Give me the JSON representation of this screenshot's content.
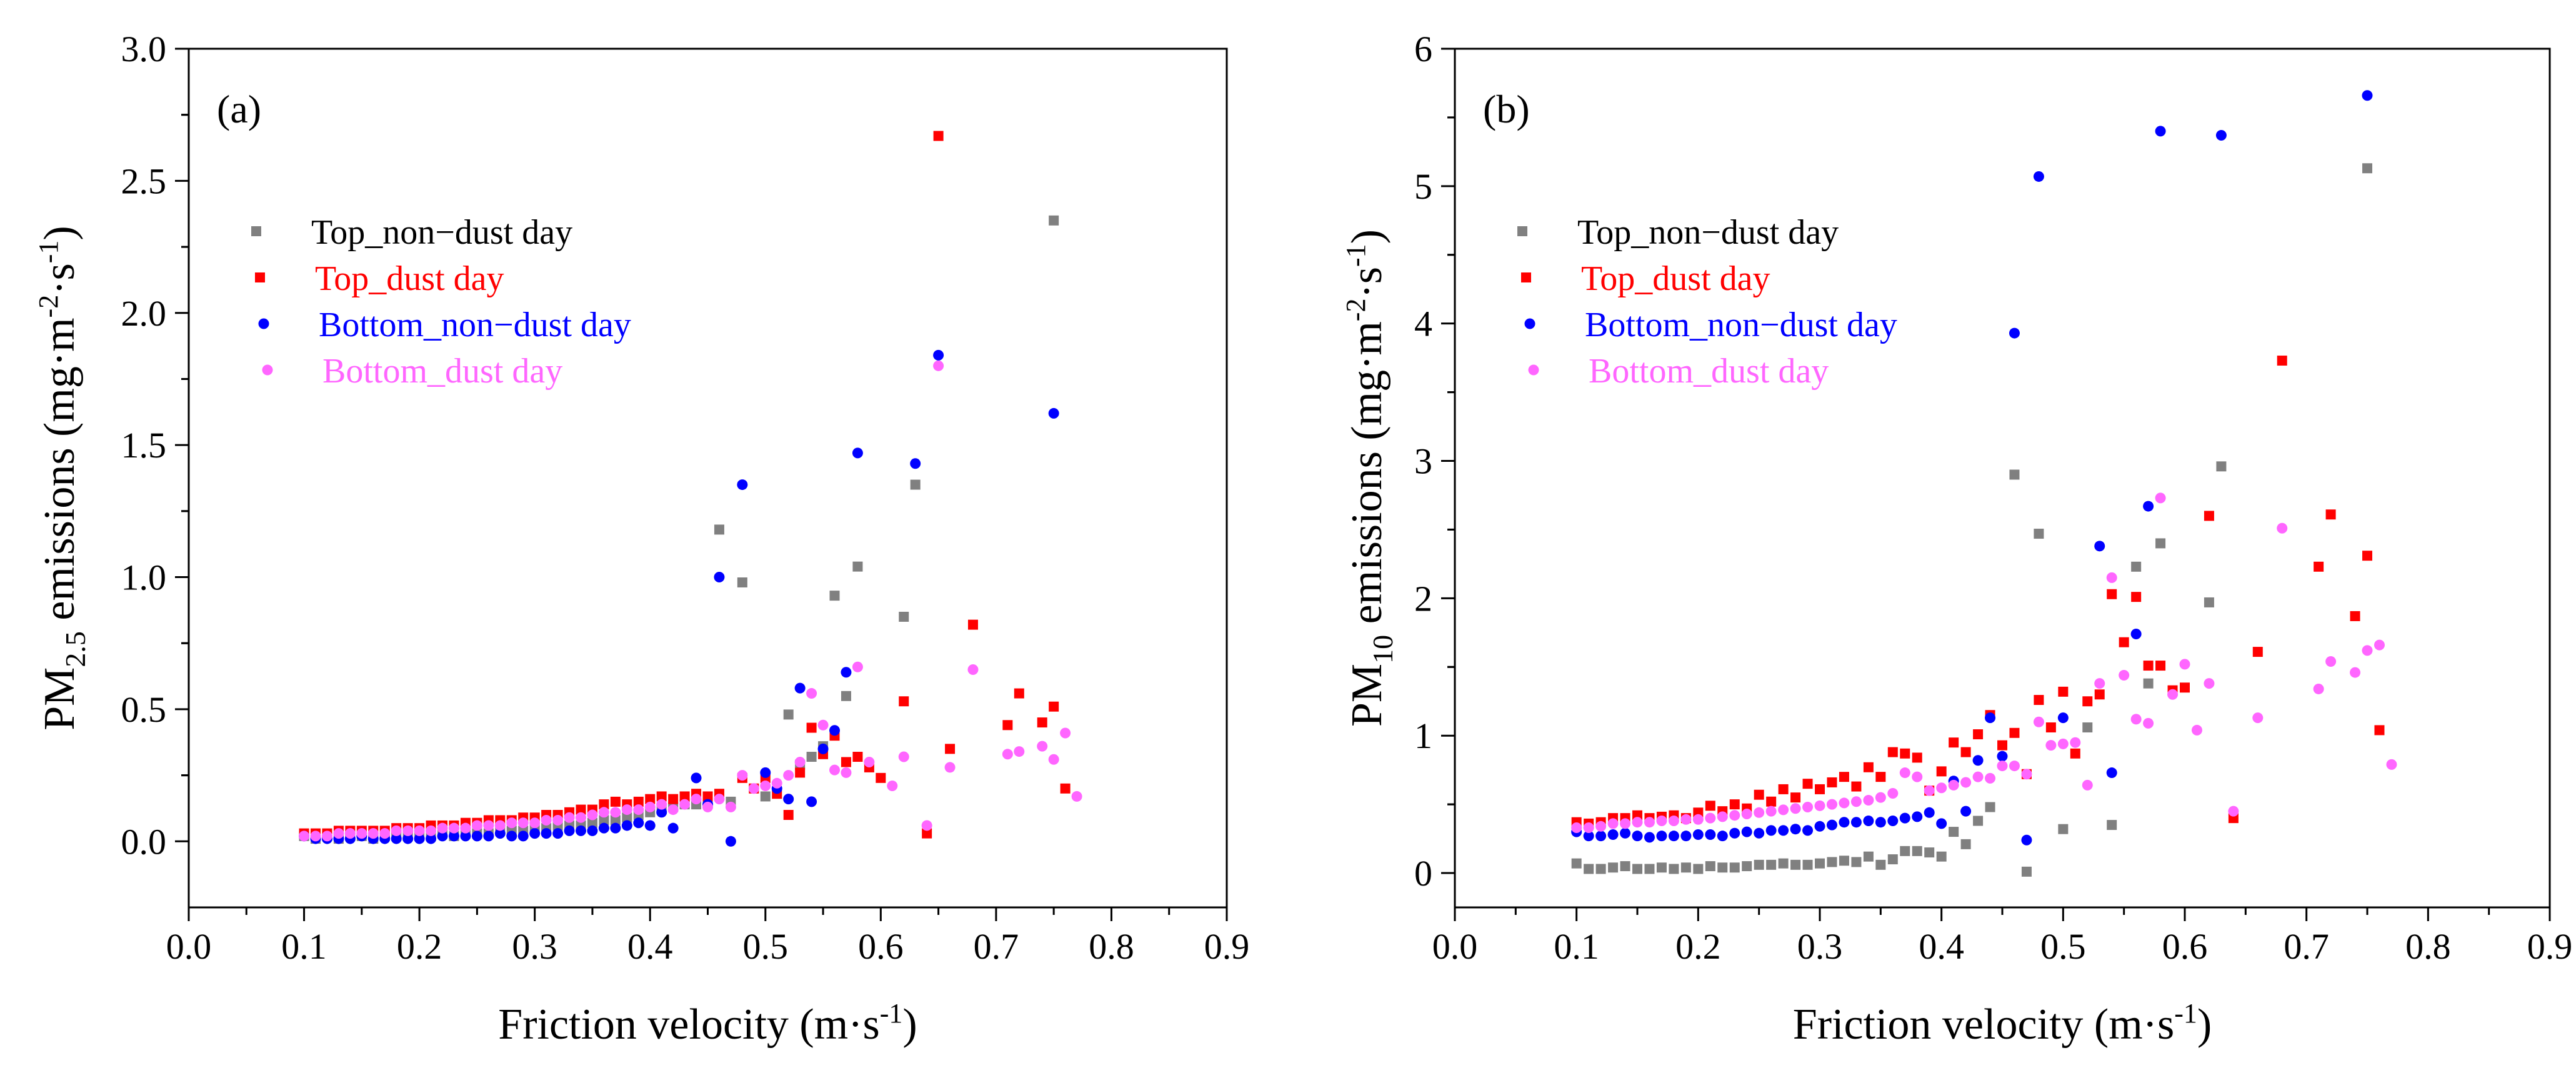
{
  "chart_data": [
    {
      "type": "scatter",
      "panel_label": "(a)",
      "ylabel": {
        "main": "PM",
        "sub": "2.5",
        "rest": " emissions (mg·m",
        "sup1": "-2",
        "mid": "·s",
        "sup2": "-1",
        "end": ")"
      },
      "xlabel": {
        "main": "Friction velocity (m·s",
        "sup": "-1",
        "end": ")"
      },
      "xlim": [
        0.0,
        0.9
      ],
      "ylim": [
        -0.25,
        3.0
      ],
      "xticks": [
        "0.0",
        "0.1",
        "0.2",
        "0.3",
        "0.4",
        "0.5",
        "0.6",
        "0.7",
        "0.8",
        "0.9"
      ],
      "yticks": [
        "0.0",
        "0.5",
        "1.0",
        "1.5",
        "2.0",
        "2.5",
        "3.0"
      ],
      "legend_position": "upper-left",
      "series": [
        {
          "name": "Top_non−dust day",
          "color": "#808080",
          "marker": "square",
          "x": [
            0.1,
            0.11,
            0.12,
            0.13,
            0.14,
            0.15,
            0.16,
            0.17,
            0.18,
            0.19,
            0.2,
            0.21,
            0.22,
            0.23,
            0.24,
            0.25,
            0.26,
            0.27,
            0.28,
            0.29,
            0.3,
            0.31,
            0.32,
            0.33,
            0.34,
            0.35,
            0.36,
            0.37,
            0.38,
            0.39,
            0.4,
            0.41,
            0.42,
            0.43,
            0.44,
            0.45,
            0.46,
            0.47,
            0.48,
            0.5,
            0.52,
            0.53,
            0.54,
            0.55,
            0.56,
            0.57,
            0.58,
            0.62,
            0.63,
            0.75
          ],
          "y": [
            0.02,
            0.01,
            0.02,
            0.01,
            0.02,
            0.02,
            0.01,
            0.02,
            0.02,
            0.02,
            0.02,
            0.02,
            0.03,
            0.02,
            0.03,
            0.03,
            0.03,
            0.04,
            0.04,
            0.04,
            0.05,
            0.05,
            0.06,
            0.06,
            0.06,
            0.07,
            0.08,
            0.08,
            0.09,
            0.1,
            0.11,
            0.12,
            0.13,
            0.14,
            0.14,
            0.16,
            1.18,
            0.15,
            0.98,
            0.17,
            0.48,
            0.29,
            0.32,
            0.36,
            0.93,
            0.55,
            1.04,
            0.85,
            1.35,
            2.35
          ]
        },
        {
          "name": "Top_dust day",
          "color": "#ff0000",
          "marker": "square",
          "x": [
            0.1,
            0.11,
            0.12,
            0.13,
            0.14,
            0.15,
            0.16,
            0.17,
            0.18,
            0.19,
            0.2,
            0.21,
            0.22,
            0.23,
            0.24,
            0.25,
            0.26,
            0.27,
            0.28,
            0.29,
            0.3,
            0.31,
            0.32,
            0.33,
            0.34,
            0.35,
            0.36,
            0.37,
            0.38,
            0.39,
            0.4,
            0.41,
            0.42,
            0.43,
            0.44,
            0.45,
            0.46,
            0.48,
            0.49,
            0.5,
            0.51,
            0.52,
            0.53,
            0.54,
            0.55,
            0.56,
            0.57,
            0.58,
            0.59,
            0.6,
            0.62,
            0.64,
            0.65,
            0.66,
            0.68,
            0.71,
            0.72,
            0.74,
            0.75,
            0.76
          ],
          "y": [
            0.03,
            0.03,
            0.03,
            0.04,
            0.04,
            0.04,
            0.04,
            0.04,
            0.05,
            0.05,
            0.05,
            0.06,
            0.06,
            0.06,
            0.07,
            0.07,
            0.08,
            0.08,
            0.08,
            0.09,
            0.09,
            0.1,
            0.1,
            0.11,
            0.12,
            0.12,
            0.14,
            0.15,
            0.14,
            0.15,
            0.16,
            0.17,
            0.16,
            0.17,
            0.18,
            0.17,
            0.18,
            0.24,
            0.2,
            0.24,
            0.18,
            0.1,
            0.26,
            0.43,
            0.33,
            0.4,
            0.3,
            0.32,
            0.28,
            0.24,
            0.53,
            0.03,
            2.67,
            0.35,
            0.82,
            0.44,
            0.56,
            0.45,
            0.51,
            0.2
          ]
        },
        {
          "name": "Bottom_non−dust day",
          "color": "#0000ff",
          "marker": "circle",
          "x": [
            0.1,
            0.11,
            0.12,
            0.13,
            0.14,
            0.15,
            0.16,
            0.17,
            0.18,
            0.19,
            0.2,
            0.21,
            0.22,
            0.23,
            0.24,
            0.25,
            0.26,
            0.27,
            0.28,
            0.29,
            0.3,
            0.31,
            0.32,
            0.33,
            0.34,
            0.35,
            0.36,
            0.37,
            0.38,
            0.39,
            0.4,
            0.41,
            0.42,
            0.44,
            0.45,
            0.46,
            0.47,
            0.48,
            0.5,
            0.51,
            0.52,
            0.53,
            0.54,
            0.55,
            0.56,
            0.57,
            0.58,
            0.63,
            0.65,
            0.75
          ],
          "y": [
            0.02,
            0.01,
            0.01,
            0.01,
            0.01,
            0.02,
            0.01,
            0.01,
            0.01,
            0.01,
            0.01,
            0.01,
            0.02,
            0.02,
            0.02,
            0.02,
            0.02,
            0.03,
            0.02,
            0.02,
            0.03,
            0.03,
            0.03,
            0.04,
            0.04,
            0.04,
            0.05,
            0.05,
            0.06,
            0.07,
            0.06,
            0.11,
            0.05,
            0.24,
            0.14,
            1.0,
            0.0,
            1.35,
            0.26,
            0.2,
            0.16,
            0.58,
            0.15,
            0.35,
            0.42,
            0.64,
            1.47,
            1.43,
            1.84,
            1.62
          ]
        },
        {
          "name": "Bottom_dust day",
          "color": "#ff66ff",
          "marker": "circle",
          "x": [
            0.1,
            0.11,
            0.12,
            0.13,
            0.14,
            0.15,
            0.16,
            0.17,
            0.18,
            0.19,
            0.2,
            0.21,
            0.22,
            0.23,
            0.24,
            0.25,
            0.26,
            0.27,
            0.28,
            0.29,
            0.3,
            0.31,
            0.32,
            0.33,
            0.34,
            0.35,
            0.36,
            0.37,
            0.38,
            0.39,
            0.4,
            0.41,
            0.42,
            0.43,
            0.44,
            0.45,
            0.46,
            0.47,
            0.48,
            0.49,
            0.5,
            0.51,
            0.52,
            0.53,
            0.54,
            0.55,
            0.56,
            0.57,
            0.58,
            0.59,
            0.61,
            0.62,
            0.64,
            0.65,
            0.66,
            0.68,
            0.71,
            0.72,
            0.74,
            0.75,
            0.76,
            0.77
          ],
          "y": [
            0.02,
            0.02,
            0.02,
            0.03,
            0.03,
            0.03,
            0.03,
            0.03,
            0.04,
            0.04,
            0.04,
            0.04,
            0.05,
            0.05,
            0.05,
            0.06,
            0.06,
            0.06,
            0.07,
            0.07,
            0.07,
            0.08,
            0.08,
            0.09,
            0.09,
            0.1,
            0.11,
            0.11,
            0.12,
            0.12,
            0.13,
            0.14,
            0.12,
            0.14,
            0.16,
            0.13,
            0.16,
            0.13,
            0.25,
            0.2,
            0.21,
            0.22,
            0.25,
            0.3,
            0.56,
            0.44,
            0.27,
            0.26,
            0.66,
            0.3,
            0.21,
            0.32,
            0.06,
            1.8,
            0.28,
            0.65,
            0.33,
            0.34,
            0.36,
            0.31,
            0.41,
            0.17
          ]
        }
      ]
    },
    {
      "type": "scatter",
      "panel_label": "(b)",
      "ylabel": {
        "main": "PM",
        "sub": "10",
        "rest": " emissions (mg·m",
        "sup1": "-2",
        "mid": "·s",
        "sup2": "-1",
        "end": ")"
      },
      "xlabel": {
        "main": "Friction velocity (m·s",
        "sup": "-1",
        "end": ")"
      },
      "xlim": [
        0.0,
        0.9
      ],
      "ylim": [
        -0.25,
        6.0
      ],
      "xticks": [
        "0.0",
        "0.1",
        "0.2",
        "0.3",
        "0.4",
        "0.5",
        "0.6",
        "0.7",
        "0.8",
        "0.9"
      ],
      "yticks": [
        "0",
        "1",
        "2",
        "3",
        "4",
        "5",
        "6"
      ],
      "legend_position": "upper-left",
      "series": [
        {
          "name": "Top_non−dust day",
          "color": "#808080",
          "marker": "square",
          "x": [
            0.1,
            0.11,
            0.12,
            0.13,
            0.14,
            0.15,
            0.16,
            0.17,
            0.18,
            0.19,
            0.2,
            0.21,
            0.22,
            0.23,
            0.24,
            0.25,
            0.26,
            0.27,
            0.28,
            0.29,
            0.3,
            0.31,
            0.32,
            0.33,
            0.34,
            0.35,
            0.36,
            0.37,
            0.38,
            0.39,
            0.4,
            0.41,
            0.42,
            0.43,
            0.44,
            0.46,
            0.47,
            0.48,
            0.5,
            0.52,
            0.54,
            0.56,
            0.57,
            0.58,
            0.62,
            0.63,
            0.75
          ],
          "y": [
            0.07,
            0.03,
            0.03,
            0.04,
            0.05,
            0.03,
            0.03,
            0.04,
            0.03,
            0.04,
            0.03,
            0.05,
            0.04,
            0.04,
            0.05,
            0.06,
            0.06,
            0.07,
            0.06,
            0.06,
            0.07,
            0.08,
            0.09,
            0.08,
            0.12,
            0.06,
            0.1,
            0.16,
            0.16,
            0.15,
            0.12,
            0.3,
            0.21,
            0.38,
            0.48,
            2.9,
            0.01,
            2.47,
            0.32,
            1.06,
            0.35,
            2.23,
            1.38,
            2.4,
            1.97,
            2.96,
            5.13
          ]
        },
        {
          "name": "Top_dust day",
          "color": "#ff0000",
          "marker": "square",
          "x": [
            0.1,
            0.11,
            0.12,
            0.13,
            0.14,
            0.15,
            0.16,
            0.17,
            0.18,
            0.19,
            0.2,
            0.21,
            0.22,
            0.23,
            0.24,
            0.25,
            0.26,
            0.27,
            0.28,
            0.29,
            0.3,
            0.31,
            0.32,
            0.33,
            0.34,
            0.35,
            0.36,
            0.37,
            0.38,
            0.39,
            0.4,
            0.41,
            0.42,
            0.43,
            0.44,
            0.45,
            0.46,
            0.47,
            0.48,
            0.49,
            0.5,
            0.51,
            0.52,
            0.53,
            0.54,
            0.55,
            0.56,
            0.57,
            0.58,
            0.59,
            0.6,
            0.62,
            0.64,
            0.66,
            0.68,
            0.71,
            0.72,
            0.74,
            0.75,
            0.76
          ],
          "y": [
            0.37,
            0.36,
            0.37,
            0.4,
            0.4,
            0.42,
            0.4,
            0.41,
            0.42,
            0.4,
            0.44,
            0.49,
            0.45,
            0.5,
            0.47,
            0.57,
            0.52,
            0.61,
            0.55,
            0.65,
            0.61,
            0.66,
            0.7,
            0.63,
            0.77,
            0.7,
            0.88,
            0.87,
            0.84,
            0.6,
            0.74,
            0.95,
            0.88,
            1.01,
            1.15,
            0.93,
            1.02,
            0.72,
            1.26,
            1.06,
            1.32,
            0.87,
            1.25,
            1.3,
            2.03,
            1.68,
            2.01,
            1.51,
            1.51,
            1.33,
            1.35,
            2.6,
            0.4,
            1.61,
            3.73,
            2.23,
            2.61,
            1.87,
            2.31,
            1.04
          ]
        },
        {
          "name": "Bottom_non−dust day",
          "color": "#0000ff",
          "marker": "circle",
          "x": [
            0.1,
            0.11,
            0.12,
            0.13,
            0.14,
            0.15,
            0.16,
            0.17,
            0.18,
            0.19,
            0.2,
            0.21,
            0.22,
            0.23,
            0.24,
            0.25,
            0.26,
            0.27,
            0.28,
            0.29,
            0.3,
            0.31,
            0.32,
            0.33,
            0.34,
            0.35,
            0.36,
            0.37,
            0.38,
            0.39,
            0.4,
            0.41,
            0.42,
            0.43,
            0.44,
            0.45,
            0.46,
            0.47,
            0.48,
            0.5,
            0.53,
            0.54,
            0.56,
            0.57,
            0.58,
            0.63,
            0.75
          ],
          "y": [
            0.3,
            0.27,
            0.27,
            0.28,
            0.29,
            0.27,
            0.26,
            0.27,
            0.27,
            0.27,
            0.28,
            0.28,
            0.27,
            0.29,
            0.3,
            0.29,
            0.31,
            0.31,
            0.32,
            0.31,
            0.34,
            0.35,
            0.37,
            0.37,
            0.38,
            0.37,
            0.38,
            0.4,
            0.41,
            0.44,
            0.36,
            0.67,
            0.45,
            0.82,
            1.13,
            0.85,
            3.93,
            0.24,
            5.07,
            1.13,
            2.38,
            0.73,
            1.74,
            2.67,
            5.4,
            5.37,
            5.66
          ]
        },
        {
          "name": "Bottom_dust day",
          "color": "#ff66ff",
          "marker": "circle",
          "x": [
            0.1,
            0.11,
            0.12,
            0.13,
            0.14,
            0.15,
            0.16,
            0.17,
            0.18,
            0.19,
            0.2,
            0.21,
            0.22,
            0.23,
            0.24,
            0.25,
            0.26,
            0.27,
            0.28,
            0.29,
            0.3,
            0.31,
            0.32,
            0.33,
            0.34,
            0.35,
            0.36,
            0.37,
            0.38,
            0.39,
            0.4,
            0.41,
            0.42,
            0.43,
            0.44,
            0.45,
            0.46,
            0.47,
            0.48,
            0.49,
            0.5,
            0.51,
            0.52,
            0.53,
            0.54,
            0.55,
            0.56,
            0.57,
            0.58,
            0.59,
            0.6,
            0.61,
            0.62,
            0.64,
            0.66,
            0.68,
            0.71,
            0.72,
            0.74,
            0.75,
            0.76,
            0.77
          ],
          "y": [
            0.33,
            0.33,
            0.34,
            0.36,
            0.36,
            0.37,
            0.37,
            0.38,
            0.38,
            0.39,
            0.39,
            0.4,
            0.41,
            0.42,
            0.43,
            0.44,
            0.45,
            0.46,
            0.47,
            0.48,
            0.49,
            0.5,
            0.51,
            0.52,
            0.53,
            0.55,
            0.58,
            0.73,
            0.7,
            0.6,
            0.62,
            0.64,
            0.66,
            0.7,
            0.69,
            0.78,
            0.78,
            0.72,
            1.1,
            0.93,
            0.94,
            0.95,
            0.64,
            1.38,
            2.15,
            1.44,
            1.12,
            1.09,
            2.73,
            1.3,
            1.52,
            1.04,
            1.38,
            0.45,
            1.13,
            2.51,
            1.34,
            1.54,
            1.46,
            1.62,
            1.66,
            0.79
          ]
        }
      ]
    }
  ]
}
